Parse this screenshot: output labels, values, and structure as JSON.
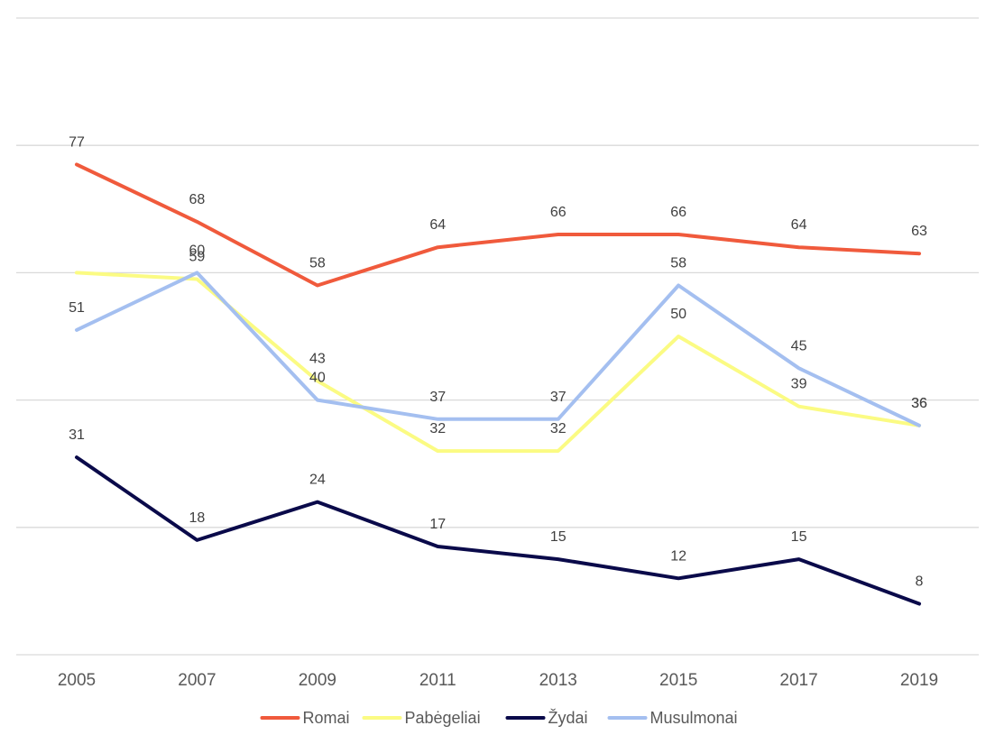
{
  "chart_data": {
    "type": "line",
    "categories": [
      "2005",
      "2007",
      "2009",
      "2011",
      "2013",
      "2015",
      "2017",
      "2019"
    ],
    "ylim": [
      0,
      100
    ],
    "y_gridlines": [
      0,
      20,
      40,
      60,
      80,
      100
    ],
    "y_tick_labels_shown": false,
    "grid": true,
    "legend_position": "bottom",
    "series": [
      {
        "name": "Romai",
        "color": "#f05a3c",
        "values": [
          77,
          68,
          58,
          64,
          66,
          66,
          64,
          63
        ]
      },
      {
        "name": "Pabėgeliai",
        "color": "#fbfb83",
        "values": [
          60,
          59,
          43,
          32,
          32,
          50,
          39,
          36
        ]
      },
      {
        "name": "Žydai",
        "color": "#0a0a4a",
        "values": [
          31,
          18,
          24,
          17,
          15,
          12,
          15,
          8
        ]
      },
      {
        "name": "Musulmonai",
        "color": "#a4bff0",
        "values": [
          51,
          60,
          40,
          37,
          37,
          58,
          45,
          36
        ]
      }
    ],
    "point_labels": [
      [
        "77",
        "68",
        "58",
        "64",
        "66",
        "66",
        "64",
        "63"
      ],
      [
        "",
        "59",
        "43",
        "32",
        "32",
        "50",
        "39",
        "36"
      ],
      [
        "31",
        "18",
        "24",
        "17",
        "15",
        "12",
        "15",
        "8"
      ],
      [
        "51",
        "60",
        "40",
        "37",
        "37",
        "58",
        "45",
        "36"
      ]
    ]
  }
}
